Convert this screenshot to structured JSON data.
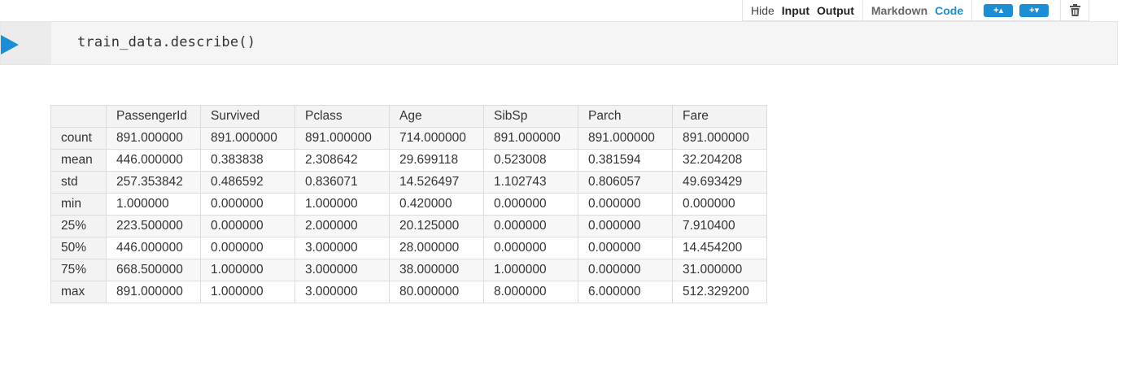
{
  "toolbar": {
    "hide": "Hide",
    "input": "Input",
    "output": "Output",
    "markdown": "Markdown",
    "code": "Code",
    "add_above": "+▴",
    "add_below": "+▾",
    "accent_color": "#1a8fd6",
    "icons": [
      "plus-above-icon",
      "plus-below-icon",
      "trash-icon"
    ]
  },
  "cell": {
    "code": "train_data.describe()",
    "icon": "run-cell-icon"
  },
  "table": {
    "columns": [
      "",
      "PassengerId",
      "Survived",
      "Pclass",
      "Age",
      "SibSp",
      "Parch",
      "Fare"
    ],
    "rows": [
      {
        "label": "count",
        "values": [
          "891.000000",
          "891.000000",
          "891.000000",
          "714.000000",
          "891.000000",
          "891.000000",
          "891.000000"
        ]
      },
      {
        "label": "mean",
        "values": [
          "446.000000",
          "0.383838",
          "2.308642",
          "29.699118",
          "0.523008",
          "0.381594",
          "32.204208"
        ]
      },
      {
        "label": "std",
        "values": [
          "257.353842",
          "0.486592",
          "0.836071",
          "14.526497",
          "1.102743",
          "0.806057",
          "49.693429"
        ]
      },
      {
        "label": "min",
        "values": [
          "1.000000",
          "0.000000",
          "1.000000",
          "0.420000",
          "0.000000",
          "0.000000",
          "0.000000"
        ]
      },
      {
        "label": "25%",
        "values": [
          "223.500000",
          "0.000000",
          "2.000000",
          "20.125000",
          "0.000000",
          "0.000000",
          "7.910400"
        ]
      },
      {
        "label": "50%",
        "values": [
          "446.000000",
          "0.000000",
          "3.000000",
          "28.000000",
          "0.000000",
          "0.000000",
          "14.454200"
        ]
      },
      {
        "label": "75%",
        "values": [
          "668.500000",
          "1.000000",
          "3.000000",
          "38.000000",
          "1.000000",
          "0.000000",
          "31.000000"
        ]
      },
      {
        "label": "max",
        "values": [
          "891.000000",
          "1.000000",
          "3.000000",
          "80.000000",
          "8.000000",
          "6.000000",
          "512.329200"
        ]
      }
    ]
  }
}
